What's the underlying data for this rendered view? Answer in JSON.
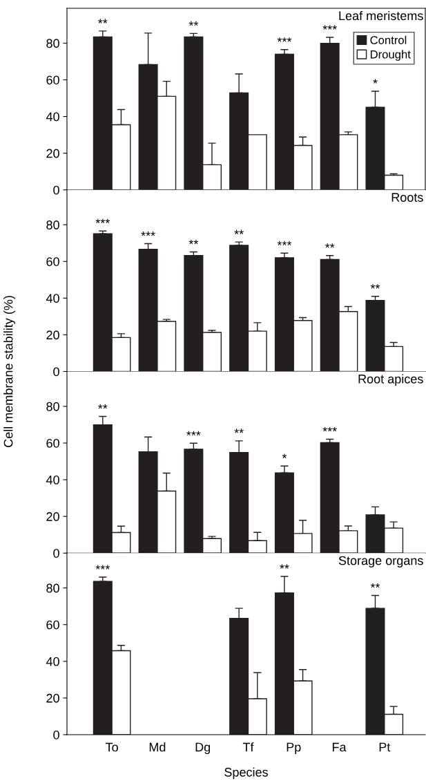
{
  "chart_data": [
    {
      "type": "bar",
      "title": "Leaf meristems",
      "categories": [
        "To",
        "Md",
        "Dg",
        "Tf",
        "Pp",
        "Fa",
        "Pt"
      ],
      "ylim": [
        0,
        99
      ],
      "yticks": [
        0,
        20,
        40,
        60,
        80
      ],
      "tick_labels": "y",
      "legend": "top right",
      "grid": false,
      "series": [
        {
          "name": "Control",
          "color": "#231f20",
          "values": [
            83.4,
            68.3,
            83.4,
            52.9,
            74,
            79.9,
            45
          ],
          "errors": [
            [
              83.4,
              86.6
            ],
            [
              68.3,
              85.5
            ],
            [
              83.4,
              85.3
            ],
            [
              52.9,
              63.2
            ],
            [
              74,
              76.5
            ],
            [
              79.9,
              83.2
            ],
            [
              45,
              53.8
            ]
          ]
        },
        {
          "name": "Drought",
          "color": "#ffffff",
          "values": [
            35.5,
            51,
            13.7,
            30.1,
            24.2,
            30.1,
            8
          ],
          "errors": [
            [
              35.5,
              43.8
            ],
            [
              51,
              59.2
            ],
            [
              13.7,
              25.5
            ],
            null,
            [
              24.2,
              28.8
            ],
            [
              30.1,
              31.6
            ],
            [
              8,
              8.8
            ]
          ]
        }
      ],
      "annotations": [
        {
          "text": "**",
          "x": "To",
          "y": 83.4
        },
        {
          "text": "**",
          "x": "Dg",
          "y": 83.4
        },
        {
          "text": "***",
          "x": "Pp",
          "y": 74
        },
        {
          "text": "***",
          "x": "Fa",
          "y": 79.9
        },
        {
          "text": "*",
          "x": "Pt",
          "y": 45
        }
      ]
    },
    {
      "type": "bar",
      "title": "Roots",
      "categories": [
        "To",
        "Md",
        "Dg",
        "Tf",
        "Pp",
        "Fa",
        "Pt"
      ],
      "ylim": [
        0,
        99
      ],
      "yticks": [
        0,
        20,
        40,
        60,
        80
      ],
      "tick_labels": "y",
      "grid": false,
      "series": [
        {
          "color": "#231f20",
          "values": [
            75.1,
            66.6,
            63.2,
            68.8,
            62,
            61.1,
            38.7
          ],
          "errors": [
            [
              75.1,
              76.6
            ],
            [
              66.6,
              69.7
            ],
            [
              63.2,
              65.2
            ],
            [
              68.8,
              70.6
            ],
            [
              62,
              64.5
            ],
            [
              61.1,
              63.2
            ],
            [
              38.7,
              41
            ]
          ]
        },
        {
          "color": "#ffffff",
          "values": [
            18.5,
            27.3,
            21.3,
            22,
            27.8,
            32.7,
            13.6
          ],
          "errors": [
            [
              18.5,
              20.6
            ],
            [
              27.3,
              28.4
            ],
            [
              21.3,
              22.4
            ],
            [
              22,
              26.6
            ],
            [
              27.8,
              29.4
            ],
            [
              32.7,
              35.4
            ],
            [
              13.6,
              15.8
            ]
          ]
        }
      ],
      "annotations": [
        {
          "text": "***",
          "x": "To",
          "y": 75.1
        },
        {
          "text": "***",
          "x": "Md",
          "y": 66.6
        },
        {
          "text": "**",
          "x": "Dg",
          "y": 63.2
        },
        {
          "text": "**",
          "x": "Tf",
          "y": 68.8
        },
        {
          "text": "***",
          "x": "Pp",
          "y": 62
        },
        {
          "text": "**",
          "x": "Fa",
          "y": 61.1
        },
        {
          "text": "**",
          "x": "Pt",
          "y": 38.7
        }
      ]
    },
    {
      "type": "bar",
      "title": "Root apices",
      "ylabel": "Cell membrane stability (%)",
      "categories": [
        "To",
        "Md",
        "Dg",
        "Tf",
        "Pp",
        "Fa",
        "Pt"
      ],
      "ylim": [
        0,
        99
      ],
      "yticks": [
        0,
        20,
        40,
        60,
        80
      ],
      "tick_labels": "y",
      "grid": false,
      "series": [
        {
          "color": "#231f20",
          "values": [
            69.9,
            55.2,
            56.6,
            54.8,
            43.7,
            60.2,
            20.8
          ],
          "errors": [
            [
              69.9,
              74.5
            ],
            [
              55.2,
              63.3
            ],
            [
              56.6,
              59.9
            ],
            [
              54.8,
              61.2
            ],
            [
              43.7,
              47.5
            ],
            [
              60.2,
              62.1
            ],
            [
              20.8,
              25.2
            ]
          ]
        },
        {
          "color": "#ffffff",
          "values": [
            11.2,
            33.8,
            7.9,
            6.8,
            10.7,
            12.2,
            13.6
          ],
          "errors": [
            [
              11.2,
              14.7
            ],
            [
              33.8,
              43.6
            ],
            [
              7.9,
              9.1
            ],
            [
              6.8,
              11.3
            ],
            [
              10.7,
              17.9
            ],
            [
              12.2,
              14.8
            ],
            [
              13.6,
              17
            ]
          ]
        }
      ],
      "annotations": [
        {
          "text": "**",
          "x": "To",
          "y": 69.9
        },
        {
          "text": "***",
          "x": "Dg",
          "y": 56.6
        },
        {
          "text": "**",
          "x": "Tf",
          "y": 54.8
        },
        {
          "text": "*",
          "x": "Pp",
          "y": 43.7
        },
        {
          "text": "***",
          "x": "Fa",
          "y": 60.2
        }
      ]
    },
    {
      "type": "bar",
      "title": "Storage organs",
      "xlabel": "Species",
      "categories": [
        "To",
        "Md",
        "Dg",
        "Tf",
        "Pp",
        "Fa",
        "Pt"
      ],
      "ylim": [
        0,
        99
      ],
      "yticks": [
        0,
        20,
        40,
        60,
        80
      ],
      "grid": false,
      "series": [
        {
          "color": "#231f20",
          "values": [
            83.6,
            null,
            null,
            63.4,
            77.3,
            null,
            68.9
          ],
          "errors": [
            [
              83.6,
              85.9
            ],
            null,
            null,
            [
              63.4,
              68.9
            ],
            [
              77.3,
              86.3
            ],
            null,
            [
              68.9,
              75.9
            ]
          ]
        },
        {
          "color": "#ffffff",
          "values": [
            45.8,
            null,
            null,
            19.6,
            29.3,
            null,
            11.1
          ],
          "errors": [
            [
              45.8,
              48.7
            ],
            null,
            null,
            [
              19.6,
              33.8
            ],
            [
              29.3,
              35.5
            ],
            null,
            [
              11.1,
              15.4
            ]
          ]
        }
      ],
      "annotations": [
        {
          "text": "***",
          "x": "To",
          "y": 83.6
        },
        {
          "text": "**",
          "x": "Pp",
          "y": 77.3
        },
        {
          "text": "**",
          "x": "Pt",
          "y": 68.9
        }
      ]
    }
  ]
}
